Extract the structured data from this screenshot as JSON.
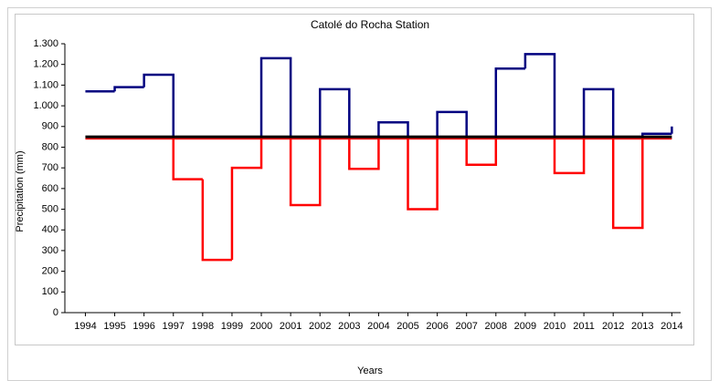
{
  "chart_data": {
    "type": "step",
    "title": "Catolé do Rocha Station",
    "xlabel": "Years",
    "ylabel": "Precipitation (mm)",
    "x": [
      1994,
      1995,
      1996,
      1997,
      1998,
      1999,
      2000,
      2001,
      2002,
      2003,
      2004,
      2005,
      2006,
      2007,
      2008,
      2009,
      2010,
      2011,
      2012,
      2013,
      2014
    ],
    "values": [
      1070,
      1090,
      1150,
      645,
      255,
      700,
      1230,
      520,
      1080,
      695,
      920,
      500,
      970,
      715,
      1180,
      1250,
      675,
      1080,
      410,
      865,
      900
    ],
    "reference_line": 850,
    "color_above": "#000080",
    "color_below": "#ff0000",
    "reference_color": "#000000",
    "xlim": [
      1993.3,
      2014.3
    ],
    "xticks": [
      1994,
      1995,
      1996,
      1997,
      1998,
      1999,
      2000,
      2001,
      2002,
      2003,
      2004,
      2005,
      2006,
      2007,
      2008,
      2009,
      2010,
      2011,
      2012,
      2013,
      2014
    ],
    "ylim": [
      0,
      1300
    ],
    "yticks": [
      0,
      100,
      200,
      300,
      400,
      500,
      600,
      700,
      800,
      900,
      {
        "value": 1000,
        "label": "1.000"
      },
      {
        "value": 1100,
        "label": "1.100"
      },
      {
        "value": 1200,
        "label": "1.200"
      },
      {
        "value": 1300,
        "label": "1.300"
      }
    ]
  }
}
